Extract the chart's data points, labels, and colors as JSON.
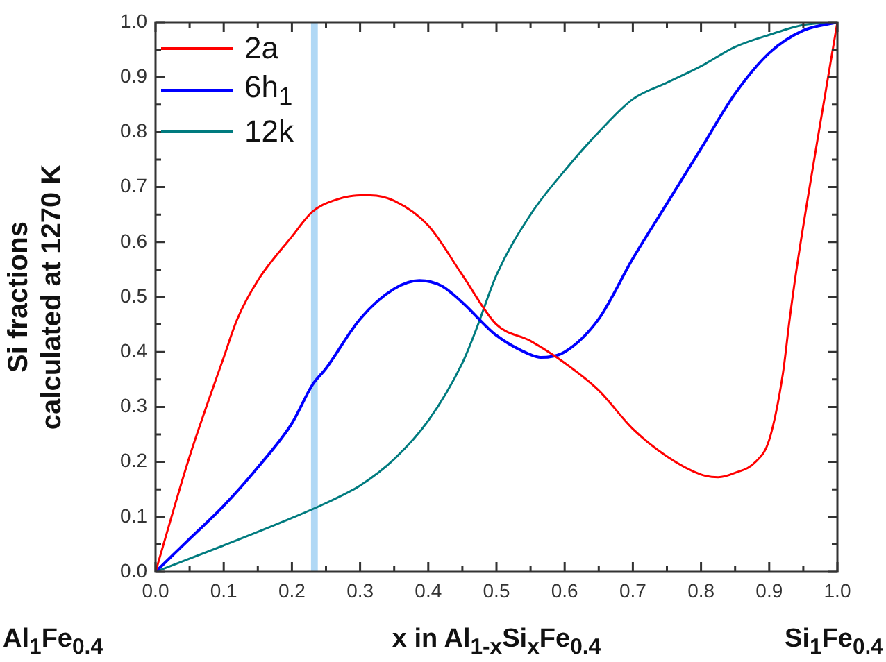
{
  "chart_data": {
    "type": "line",
    "ylabel": "Si fractions\ncalculated at 1270 K",
    "xlabel": "x in Al$_{1-x}$Si$_{x}$Fe$_{0.4}$",
    "annotations": [
      "Al$_{1}$Fe$_{0.4}$",
      "Si$_{1}$Fe$_{0.4}$"
    ],
    "legend": "top left",
    "grid": false,
    "marker": "none",
    "line_style": "solid",
    "xlim": [
      0,
      1
    ],
    "ylim": [
      0,
      1
    ],
    "xticks": [
      {
        "value": 0,
        "label": "0.0"
      },
      {
        "value": 0.05,
        "label": null
      },
      {
        "value": 0.1,
        "label": "0.1"
      },
      {
        "value": 0.15,
        "label": null
      },
      {
        "value": 0.2,
        "label": "0.2"
      },
      {
        "value": 0.25,
        "label": null
      },
      {
        "value": 0.3,
        "label": "0.3"
      },
      {
        "value": 0.35,
        "label": null
      },
      {
        "value": 0.4,
        "label": "0.4"
      },
      {
        "value": 0.45,
        "label": null
      },
      {
        "value": 0.5,
        "label": "0.5"
      },
      {
        "value": 0.55,
        "label": null
      },
      {
        "value": 0.6,
        "label": "0.6"
      },
      {
        "value": 0.65,
        "label": null
      },
      {
        "value": 0.7,
        "label": "0.7"
      },
      {
        "value": 0.75,
        "label": null
      },
      {
        "value": 0.8,
        "label": "0.8"
      },
      {
        "value": 0.85,
        "label": null
      },
      {
        "value": 0.9,
        "label": "0.9"
      },
      {
        "value": 0.95,
        "label": null
      },
      {
        "value": 1,
        "label": "1.0"
      }
    ],
    "yticks": [
      {
        "value": 0,
        "label": "0.0"
      },
      {
        "value": 0.05,
        "label": null
      },
      {
        "value": 0.1,
        "label": "0.1"
      },
      {
        "value": 0.15,
        "label": null
      },
      {
        "value": 0.2,
        "label": "0.2"
      },
      {
        "value": 0.25,
        "label": null
      },
      {
        "value": 0.3,
        "label": "0.3"
      },
      {
        "value": 0.35,
        "label": null
      },
      {
        "value": 0.4,
        "label": "0.4"
      },
      {
        "value": 0.45,
        "label": null
      },
      {
        "value": 0.5,
        "label": "0.5"
      },
      {
        "value": 0.55,
        "label": null
      },
      {
        "value": 0.6,
        "label": "0.6"
      },
      {
        "value": 0.65,
        "label": null
      },
      {
        "value": 0.7,
        "label": "0.7"
      },
      {
        "value": 0.75,
        "label": null
      },
      {
        "value": 0.8,
        "label": "0.8"
      },
      {
        "value": 0.85,
        "label": null
      },
      {
        "value": 0.9,
        "label": "0.9"
      },
      {
        "value": 0.95,
        "label": null
      },
      {
        "value": 1,
        "label": "1.0"
      }
    ],
    "bands": [
      {
        "axis": "x",
        "from": 0.228,
        "to": 0.238,
        "color": "#b0d8f5"
      }
    ],
    "series": [
      {
        "name": "2a",
        "color": "#ff0000",
        "x": [
          0,
          0.05,
          0.1,
          0.12,
          0.15,
          0.2,
          0.23,
          0.26,
          0.3,
          0.315,
          0.35,
          0.4,
          0.45,
          0.5,
          0.55,
          0.6,
          0.65,
          0.7,
          0.75,
          0.8,
          0.825,
          0.85,
          0.88,
          0.9,
          0.92,
          0.93,
          0.94,
          0.97,
          1
        ],
        "values": [
          0,
          0.21,
          0.39,
          0.46,
          0.53,
          0.61,
          0.655,
          0.675,
          0.685,
          0.685,
          0.675,
          0.63,
          0.54,
          0.45,
          0.42,
          0.38,
          0.33,
          0.26,
          0.21,
          0.177,
          0.172,
          0.18,
          0.2,
          0.24,
          0.36,
          0.46,
          0.55,
          0.78,
          1
        ]
      },
      {
        "name": "6h$_{1}$",
        "color": "#0000ff",
        "x": [
          0,
          0.05,
          0.1,
          0.15,
          0.2,
          0.23,
          0.25,
          0.3,
          0.35,
          0.387,
          0.42,
          0.45,
          0.5,
          0.55,
          0.565,
          0.6,
          0.65,
          0.7,
          0.75,
          0.8,
          0.85,
          0.9,
          0.95,
          1
        ],
        "values": [
          0,
          0.06,
          0.12,
          0.19,
          0.27,
          0.34,
          0.37,
          0.46,
          0.515,
          0.53,
          0.52,
          0.49,
          0.43,
          0.395,
          0.39,
          0.4,
          0.46,
          0.57,
          0.67,
          0.77,
          0.87,
          0.944,
          0.985,
          1
        ]
      },
      {
        "name": "12k",
        "color": "#007b7f",
        "x": [
          0,
          0.1,
          0.2,
          0.25,
          0.3,
          0.35,
          0.4,
          0.45,
          0.47,
          0.5,
          0.55,
          0.6,
          0.65,
          0.7,
          0.75,
          0.8,
          0.85,
          0.9,
          0.95,
          1
        ],
        "values": [
          0,
          0.048,
          0.098,
          0.125,
          0.157,
          0.205,
          0.275,
          0.38,
          0.44,
          0.54,
          0.65,
          0.73,
          0.8,
          0.86,
          0.89,
          0.92,
          0.955,
          0.977,
          0.995,
          1
        ]
      }
    ]
  }
}
